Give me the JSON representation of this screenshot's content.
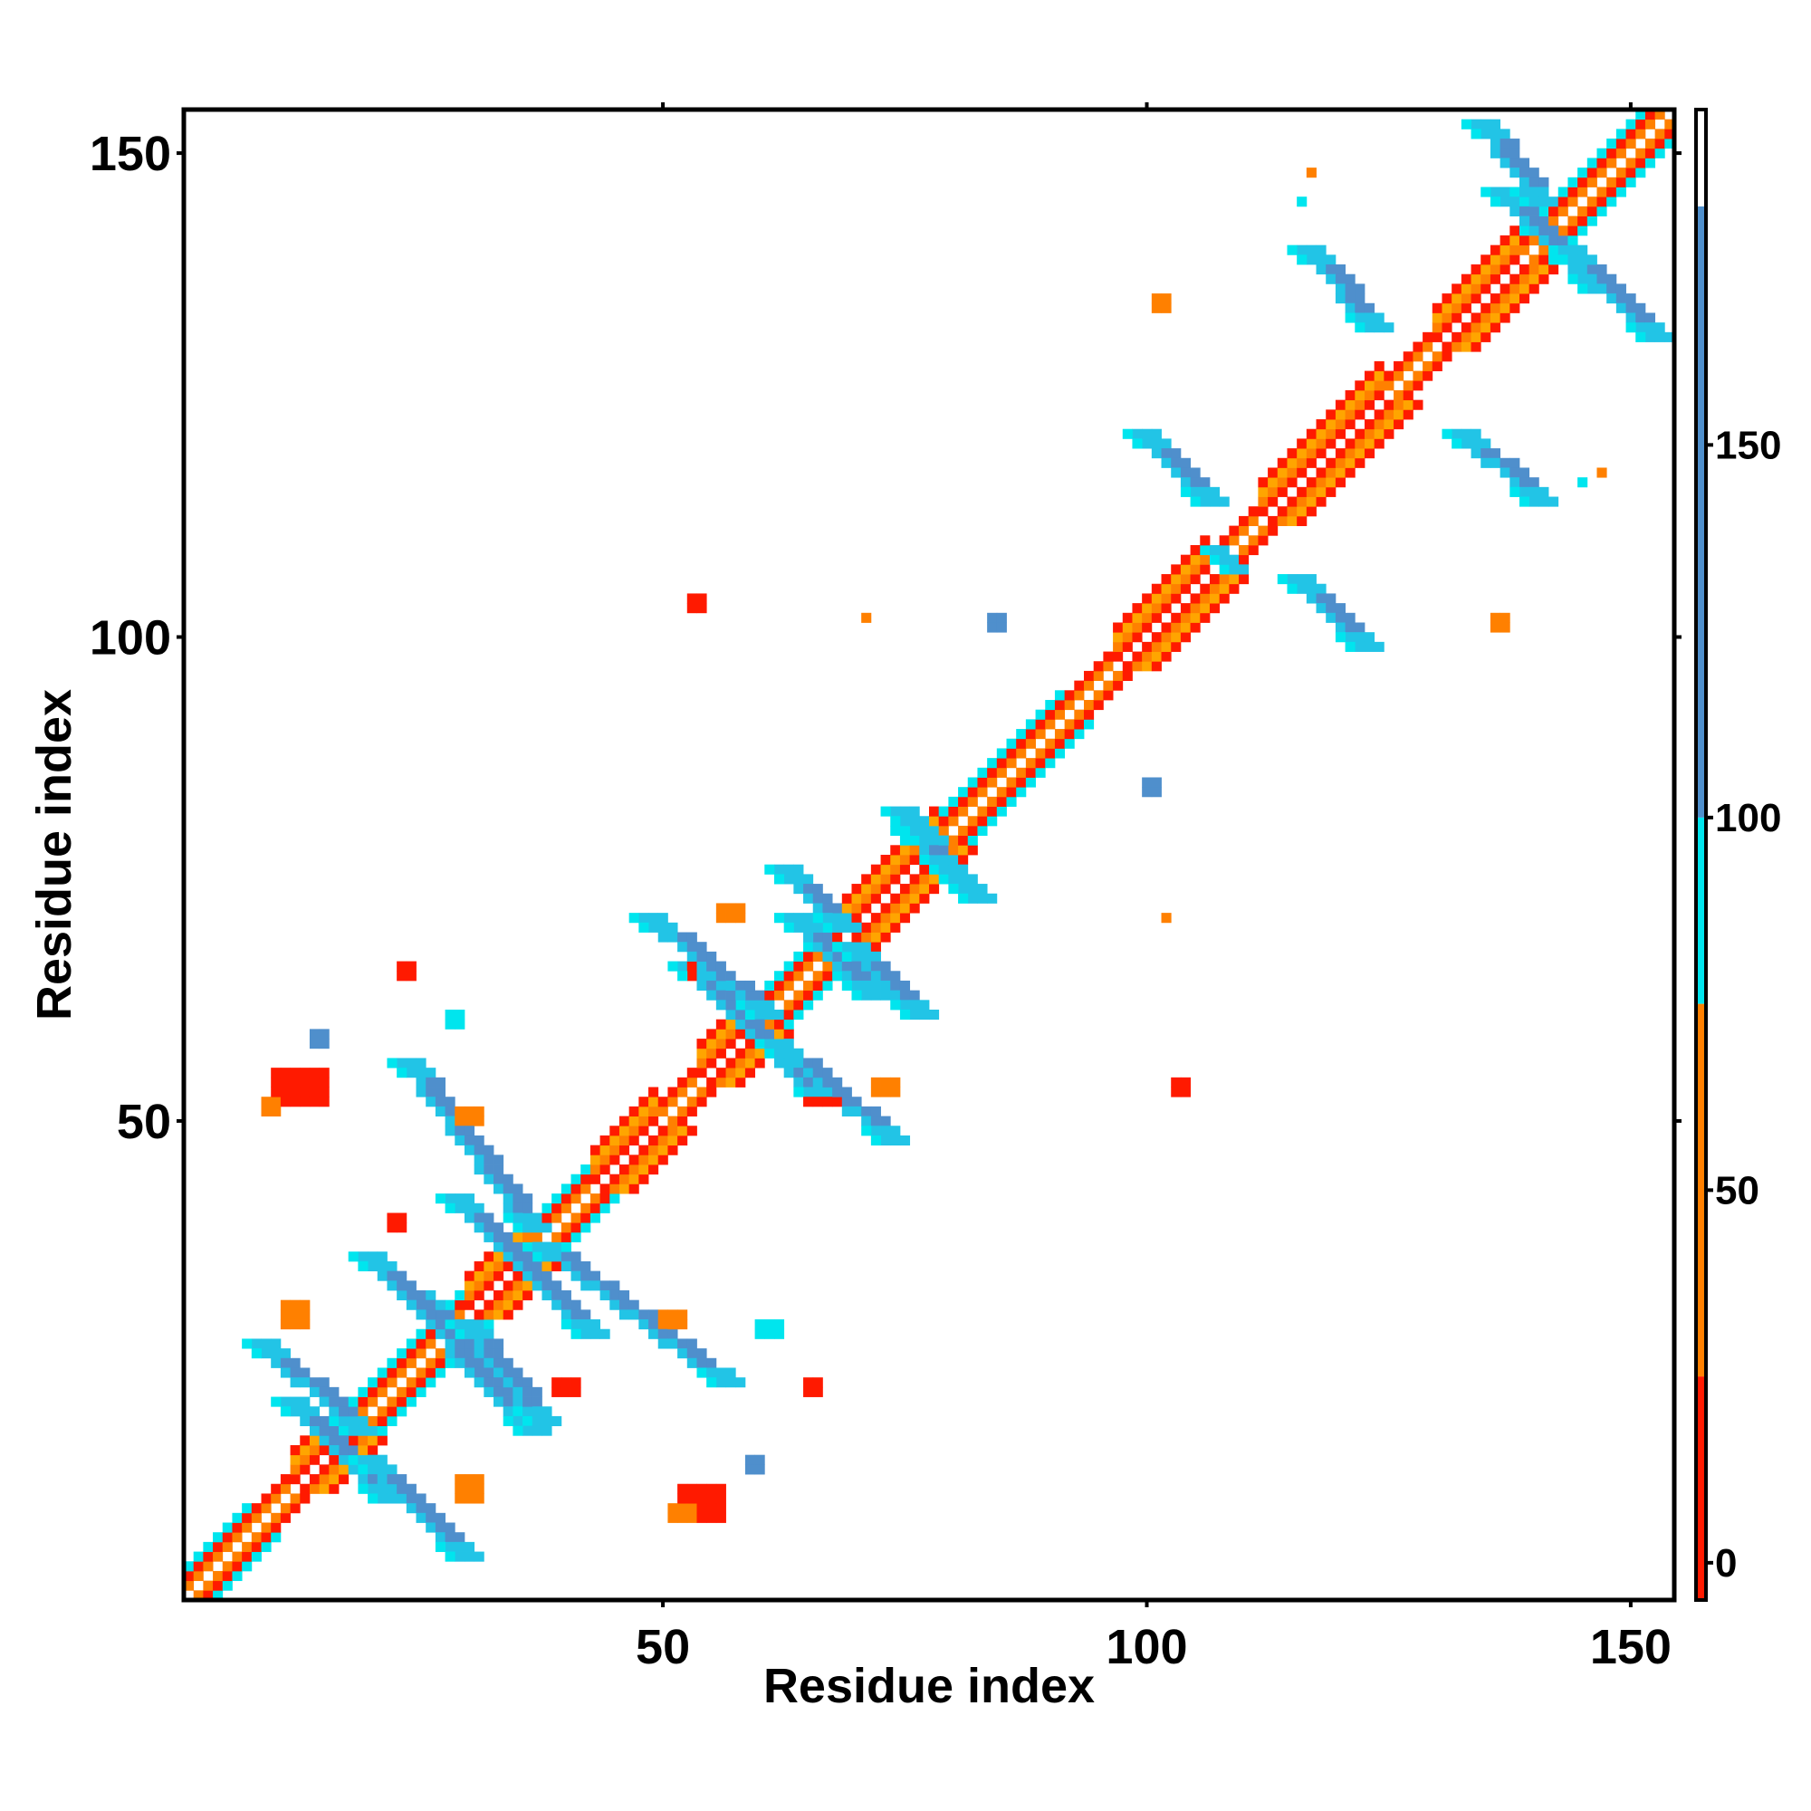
{
  "chart_data": {
    "type": "heatmap",
    "title": "",
    "xlabel": "Residue index",
    "ylabel": "Residue index",
    "xlim": [
      1,
      154
    ],
    "ylim": [
      1,
      154
    ],
    "x_ticks": [
      50,
      100,
      150
    ],
    "y_ticks": [
      50,
      100,
      150
    ],
    "grid": false,
    "colorbar": {
      "ticks": [
        0,
        50,
        100,
        150
      ],
      "range": [
        -5,
        195
      ],
      "bands": [
        {
          "from": -5,
          "to": 25,
          "color": "#ff1a00"
        },
        {
          "from": 25,
          "to": 75,
          "color": "#ff8000"
        },
        {
          "from": 75,
          "to": 100,
          "color": "#00e5ee"
        },
        {
          "from": 100,
          "to": 182,
          "color": "#4f8fcc"
        },
        {
          "from": 182,
          "to": 195,
          "color": "#ffffff"
        }
      ]
    },
    "colors": {
      "red": "#ff1a00",
      "orange": "#ff8000",
      "amber": "#ffa500",
      "cyan": "#00e5ee",
      "lightblue": "#22c4e6",
      "steel": "#4f8fcc"
    },
    "diagonal": {
      "segments": [
        {
          "from": 1,
          "to": 7,
          "type": "beta"
        },
        {
          "from": 8,
          "to": 11,
          "type": "strand"
        },
        {
          "from": 12,
          "to": 17,
          "type": "helix"
        },
        {
          "from": 18,
          "to": 29,
          "type": "beta"
        },
        {
          "from": 30,
          "to": 36,
          "type": "helix"
        },
        {
          "from": 37,
          "to": 42,
          "type": "beta"
        },
        {
          "from": 43,
          "to": 49,
          "type": "helix"
        },
        {
          "from": 50,
          "to": 53,
          "type": "strand"
        },
        {
          "from": 54,
          "to": 59,
          "type": "helix"
        },
        {
          "from": 60,
          "to": 67,
          "type": "beta"
        },
        {
          "from": 68,
          "to": 78,
          "type": "helix"
        },
        {
          "from": 79,
          "to": 91,
          "type": "beta"
        },
        {
          "from": 92,
          "to": 96,
          "type": "strand"
        },
        {
          "from": 97,
          "to": 106,
          "type": "helix"
        },
        {
          "from": 107,
          "to": 111,
          "type": "strand"
        },
        {
          "from": 112,
          "to": 124,
          "type": "helix"
        },
        {
          "from": 125,
          "to": 129,
          "type": "strand"
        },
        {
          "from": 130,
          "to": 138,
          "type": "helix"
        },
        {
          "from": 139,
          "to": 154,
          "type": "beta"
        }
      ]
    },
    "antidiagonal_bands": [
      {
        "cx": 16,
        "cy": 16,
        "len": 10,
        "width": 3,
        "color": "steel"
      },
      {
        "cx": 28,
        "cy": 28,
        "len": 9,
        "width": 3,
        "color": "steel"
      },
      {
        "cx": 35,
        "cy": 35,
        "len": 14,
        "width": 3,
        "color": "steel"
      },
      {
        "cx": 59,
        "cy": 59,
        "len": 15,
        "width": 3,
        "color": "steel"
      },
      {
        "cx": 67,
        "cy": 67,
        "len": 9,
        "width": 3,
        "color": "steel"
      },
      {
        "cx": 77,
        "cy": 78,
        "len": 4,
        "width": 3,
        "color": "steel"
      },
      {
        "cx": 108,
        "cy": 108,
        "len": 2,
        "width": 2,
        "color": "cyan"
      },
      {
        "cx": 141,
        "cy": 141,
        "len": 10,
        "width": 3,
        "color": "steel"
      }
    ],
    "offdiagonal_bands": [
      {
        "x1": 8,
        "y1": 27,
        "x2": 18,
        "y2": 18,
        "width": 3,
        "color": "steel"
      },
      {
        "x1": 19,
        "y1": 15,
        "x2": 29,
        "y2": 5,
        "width": 3,
        "color": "steel"
      },
      {
        "x1": 19,
        "y1": 36,
        "x2": 36,
        "y2": 18,
        "width": 3,
        "color": "steel"
      },
      {
        "x1": 29,
        "y1": 29,
        "x2": 37,
        "y2": 19,
        "width": 3,
        "color": "steel"
      },
      {
        "x1": 23,
        "y1": 56,
        "x2": 36,
        "y2": 39,
        "width": 3,
        "color": "steel"
      },
      {
        "x1": 37,
        "y1": 37,
        "x2": 56,
        "y2": 23,
        "width": 3,
        "color": "steel"
      },
      {
        "x1": 48,
        "y1": 71,
        "x2": 60,
        "y2": 61,
        "width": 3,
        "color": "steel"
      },
      {
        "x1": 61,
        "y1": 58,
        "x2": 73,
        "y2": 48,
        "width": 3,
        "color": "steel"
      },
      {
        "x1": 62,
        "y1": 76,
        "x2": 68,
        "y2": 70,
        "width": 3,
        "color": "steel"
      },
      {
        "x1": 69,
        "y1": 68,
        "x2": 76,
        "y2": 61,
        "width": 3,
        "color": "steel"
      },
      {
        "x1": 74,
        "y1": 82,
        "x2": 77,
        "y2": 79,
        "width": 3,
        "color": "steel"
      },
      {
        "x1": 79,
        "y1": 76,
        "x2": 82,
        "y2": 73,
        "width": 3,
        "color": "steel"
      },
      {
        "x1": 99,
        "y1": 121,
        "x2": 106,
        "y2": 114,
        "width": 3,
        "color": "steel"
      },
      {
        "x1": 115,
        "y1": 106,
        "x2": 122,
        "y2": 99,
        "width": 3,
        "color": "steel"
      },
      {
        "x1": 116,
        "y1": 140,
        "x2": 123,
        "y2": 132,
        "width": 3,
        "color": "steel"
      },
      {
        "x1": 132,
        "y1": 121,
        "x2": 140,
        "y2": 114,
        "width": 3,
        "color": "steel"
      },
      {
        "x1": 134,
        "y1": 153,
        "x2": 140,
        "y2": 145,
        "width": 3,
        "color": "steel"
      },
      {
        "x1": 143,
        "y1": 140,
        "x2": 152,
        "y2": 131,
        "width": 3,
        "color": "steel"
      }
    ],
    "patches": [
      {
        "x": 10,
        "y": 52,
        "w": 6,
        "h": 4,
        "color": "red"
      },
      {
        "x": 9,
        "y": 51,
        "w": 2,
        "h": 2,
        "color": "orange"
      },
      {
        "x": 52,
        "y": 9,
        "w": 5,
        "h": 4,
        "color": "red"
      },
      {
        "x": 51,
        "y": 9,
        "w": 3,
        "h": 2,
        "color": "orange"
      },
      {
        "x": 29,
        "y": 11,
        "w": 3,
        "h": 3,
        "color": "orange"
      },
      {
        "x": 11,
        "y": 29,
        "w": 3,
        "h": 3,
        "color": "orange"
      },
      {
        "x": 29,
        "y": 50,
        "w": 3,
        "h": 2,
        "color": "orange"
      },
      {
        "x": 50,
        "y": 29,
        "w": 3,
        "h": 2,
        "color": "orange"
      },
      {
        "x": 53,
        "y": 65,
        "w": 1,
        "h": 2,
        "color": "red"
      },
      {
        "x": 65,
        "y": 52,
        "w": 4,
        "h": 1,
        "color": "red"
      },
      {
        "x": 53,
        "y": 103,
        "w": 2,
        "h": 2,
        "color": "red"
      },
      {
        "x": 103,
        "y": 53,
        "w": 2,
        "h": 2,
        "color": "red"
      },
      {
        "x": 22,
        "y": 39,
        "w": 2,
        "h": 2,
        "color": "red"
      },
      {
        "x": 39,
        "y": 22,
        "w": 3,
        "h": 2,
        "color": "red"
      },
      {
        "x": 23,
        "y": 65,
        "w": 2,
        "h": 2,
        "color": "red"
      },
      {
        "x": 65,
        "y": 22,
        "w": 2,
        "h": 2,
        "color": "red"
      },
      {
        "x": 56,
        "y": 71,
        "w": 3,
        "h": 2,
        "color": "orange"
      },
      {
        "x": 72,
        "y": 53,
        "w": 3,
        "h": 2,
        "color": "orange"
      },
      {
        "x": 101,
        "y": 134,
        "w": 2,
        "h": 2,
        "color": "orange"
      },
      {
        "x": 136,
        "y": 101,
        "w": 2,
        "h": 2,
        "color": "orange"
      },
      {
        "x": 117,
        "y": 148,
        "w": 1,
        "h": 1,
        "color": "orange"
      },
      {
        "x": 116,
        "y": 145,
        "w": 1,
        "h": 1,
        "color": "cyan"
      },
      {
        "x": 147,
        "y": 117,
        "w": 1,
        "h": 1,
        "color": "orange"
      },
      {
        "x": 145,
        "y": 116,
        "w": 1,
        "h": 1,
        "color": "cyan"
      },
      {
        "x": 71,
        "y": 102,
        "w": 1,
        "h": 1,
        "color": "orange"
      },
      {
        "x": 102,
        "y": 71,
        "w": 1,
        "h": 1,
        "color": "orange"
      },
      {
        "x": 84,
        "y": 101,
        "w": 2,
        "h": 2,
        "color": "steel"
      },
      {
        "x": 100,
        "y": 84,
        "w": 2,
        "h": 2,
        "color": "steel"
      },
      {
        "x": 14,
        "y": 58,
        "w": 2,
        "h": 2,
        "color": "steel"
      },
      {
        "x": 59,
        "y": 14,
        "w": 2,
        "h": 2,
        "color": "steel"
      },
      {
        "x": 28,
        "y": 60,
        "w": 2,
        "h": 2,
        "color": "cyan"
      },
      {
        "x": 60,
        "y": 28,
        "w": 3,
        "h": 2,
        "color": "cyan"
      }
    ]
  }
}
